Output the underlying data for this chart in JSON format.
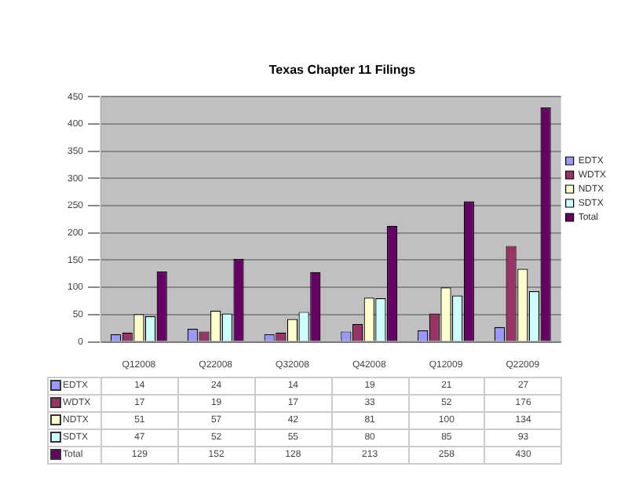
{
  "chart_data": {
    "type": "bar",
    "title": "Texas Chapter 11 Filings",
    "categories": [
      "Q12008",
      "Q22008",
      "Q32008",
      "Q42008",
      "Q12009",
      "Q22009"
    ],
    "series": [
      {
        "name": "EDTX",
        "color": "#9999ff",
        "values": [
          14,
          24,
          14,
          19,
          21,
          27
        ]
      },
      {
        "name": "WDTX",
        "color": "#993366",
        "values": [
          17,
          19,
          17,
          33,
          52,
          176
        ]
      },
      {
        "name": "NDTX",
        "color": "#ffffcc",
        "values": [
          51,
          57,
          42,
          81,
          100,
          134
        ]
      },
      {
        "name": "SDTX",
        "color": "#ccffff",
        "values": [
          47,
          52,
          55,
          80,
          85,
          93
        ]
      },
      {
        "name": "Total",
        "color": "#660066",
        "values": [
          129,
          152,
          128,
          213,
          258,
          430
        ]
      }
    ],
    "ylim": [
      0,
      450
    ],
    "yticks": [
      0,
      50,
      100,
      150,
      200,
      250,
      300,
      350,
      400,
      450
    ],
    "grid": "y",
    "legend": "right",
    "data_labels": true
  }
}
